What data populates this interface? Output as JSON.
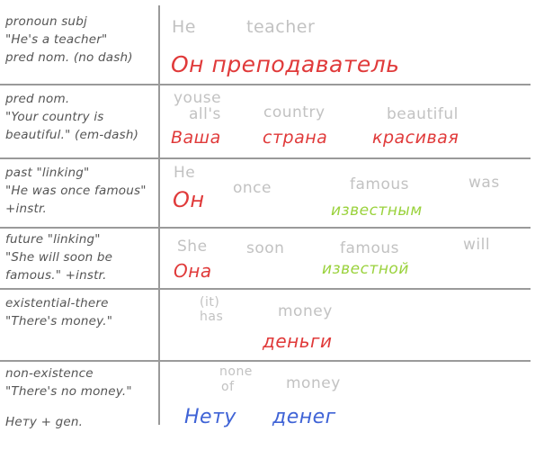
{
  "colors": {
    "subject": "#e03a3a",
    "predicate": "#9ad23c",
    "negative": "#3f63d6",
    "gloss": "#c2c2c2",
    "note": "#555555",
    "rule": "#9a9a9a"
  },
  "rows": [
    {
      "note": [
        "pronoun subj",
        "\"He's a teacher\"",
        "pred nom. (no dash)"
      ],
      "gloss": [
        "He",
        "teacher"
      ],
      "russian": [
        "Он преподаватель"
      ]
    },
    {
      "note": [
        "pred nom.",
        "\"Your country is",
        "beautiful.\" (em-dash)"
      ],
      "gloss": [
        "youse",
        "all's",
        "country",
        "beautiful"
      ],
      "russian": [
        "Ваша",
        "страна",
        "красивая"
      ]
    },
    {
      "note": [
        "past \"linking\"",
        "\"He was once famous\"",
        "+instr."
      ],
      "gloss": [
        "He",
        "once",
        "famous",
        "was"
      ],
      "russian": [
        "Он",
        "известным"
      ]
    },
    {
      "note": [
        "future \"linking\"",
        "\"She will soon be",
        "famous.\" +instr."
      ],
      "gloss": [
        "She",
        "soon",
        "famous",
        "will"
      ],
      "russian": [
        "Она",
        "известной"
      ]
    },
    {
      "note": [
        "existential-there",
        "\"There's money.\""
      ],
      "gloss": [
        "(it)",
        "has",
        "money"
      ],
      "russian": [
        "деньги"
      ]
    },
    {
      "note": [
        "non-existence",
        "\"There's no money.\"",
        "Нету + gen."
      ],
      "gloss": [
        "none",
        "of",
        "money"
      ],
      "russian": [
        "Нету",
        "денег"
      ]
    }
  ]
}
